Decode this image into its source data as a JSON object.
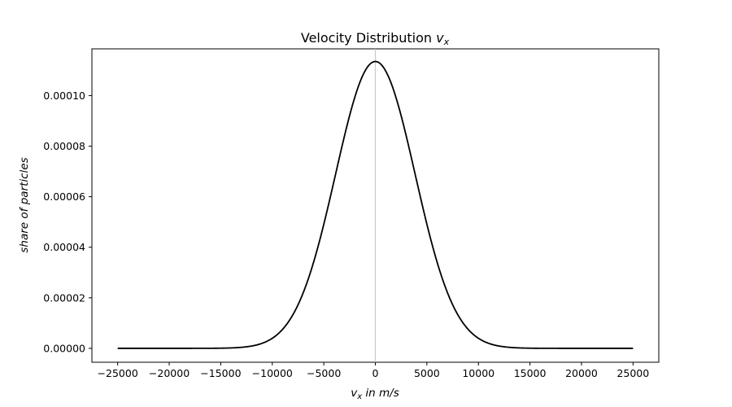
{
  "chart_data": {
    "type": "line",
    "title": "Velocity Distribution v_x",
    "title_parts": {
      "main": "Velocity Distribution ",
      "var": "v",
      "sub": "x"
    },
    "xlabel": "v_x in m/s",
    "xlabel_parts": {
      "var": "v",
      "sub": "x",
      "rest": " in m/s"
    },
    "ylabel": "share of particles",
    "xlim": [
      -27500,
      27500
    ],
    "ylim": [
      -5.5e-06,
      0.0001185
    ],
    "x_ticks": [
      -25000,
      -20000,
      -15000,
      -10000,
      -5000,
      0,
      5000,
      10000,
      15000,
      20000,
      25000
    ],
    "x_tick_labels": [
      "−25000",
      "−20000",
      "−15000",
      "−10000",
      "−5000",
      "0",
      "5000",
      "10000",
      "15000",
      "20000",
      "25000"
    ],
    "y_ticks": [
      0,
      2e-05,
      4e-05,
      6e-05,
      8e-05,
      0.0001
    ],
    "y_tick_labels": [
      "0.00000",
      "0.00002",
      "0.00004",
      "0.00006",
      "0.00008",
      "0.00010"
    ],
    "reference_line": {
      "x": 0,
      "color": "#c8c8c8"
    },
    "grid": false,
    "legend": "none",
    "series": [
      {
        "color": "#000000",
        "x": [
          -25000,
          -20000,
          -15000,
          -12500,
          -10000,
          -9000,
          -8000,
          -7000,
          -6000,
          -5000,
          -4000,
          -3000,
          -2000,
          -1000,
          0,
          1000,
          2000,
          3000,
          4000,
          5000,
          6000,
          7000,
          8000,
          9000,
          10000,
          12500,
          15000,
          20000,
          25000
        ],
        "y": [
          0,
          0,
          1e-07,
          4e-07,
          2.5e-06,
          5.2e-06,
          1.06e-05,
          1.95e-05,
          3.25e-05,
          4.88e-05,
          6.64e-05,
          8.76e-05,
          0.0001036,
          0.0001116,
          0.0001135,
          0.0001116,
          0.0001036,
          8.76e-05,
          6.64e-05,
          4.88e-05,
          3.25e-05,
          1.95e-05,
          1.06e-05,
          5.2e-06,
          2.5e-06,
          4e-07,
          1e-07,
          0,
          0
        ]
      }
    ]
  }
}
